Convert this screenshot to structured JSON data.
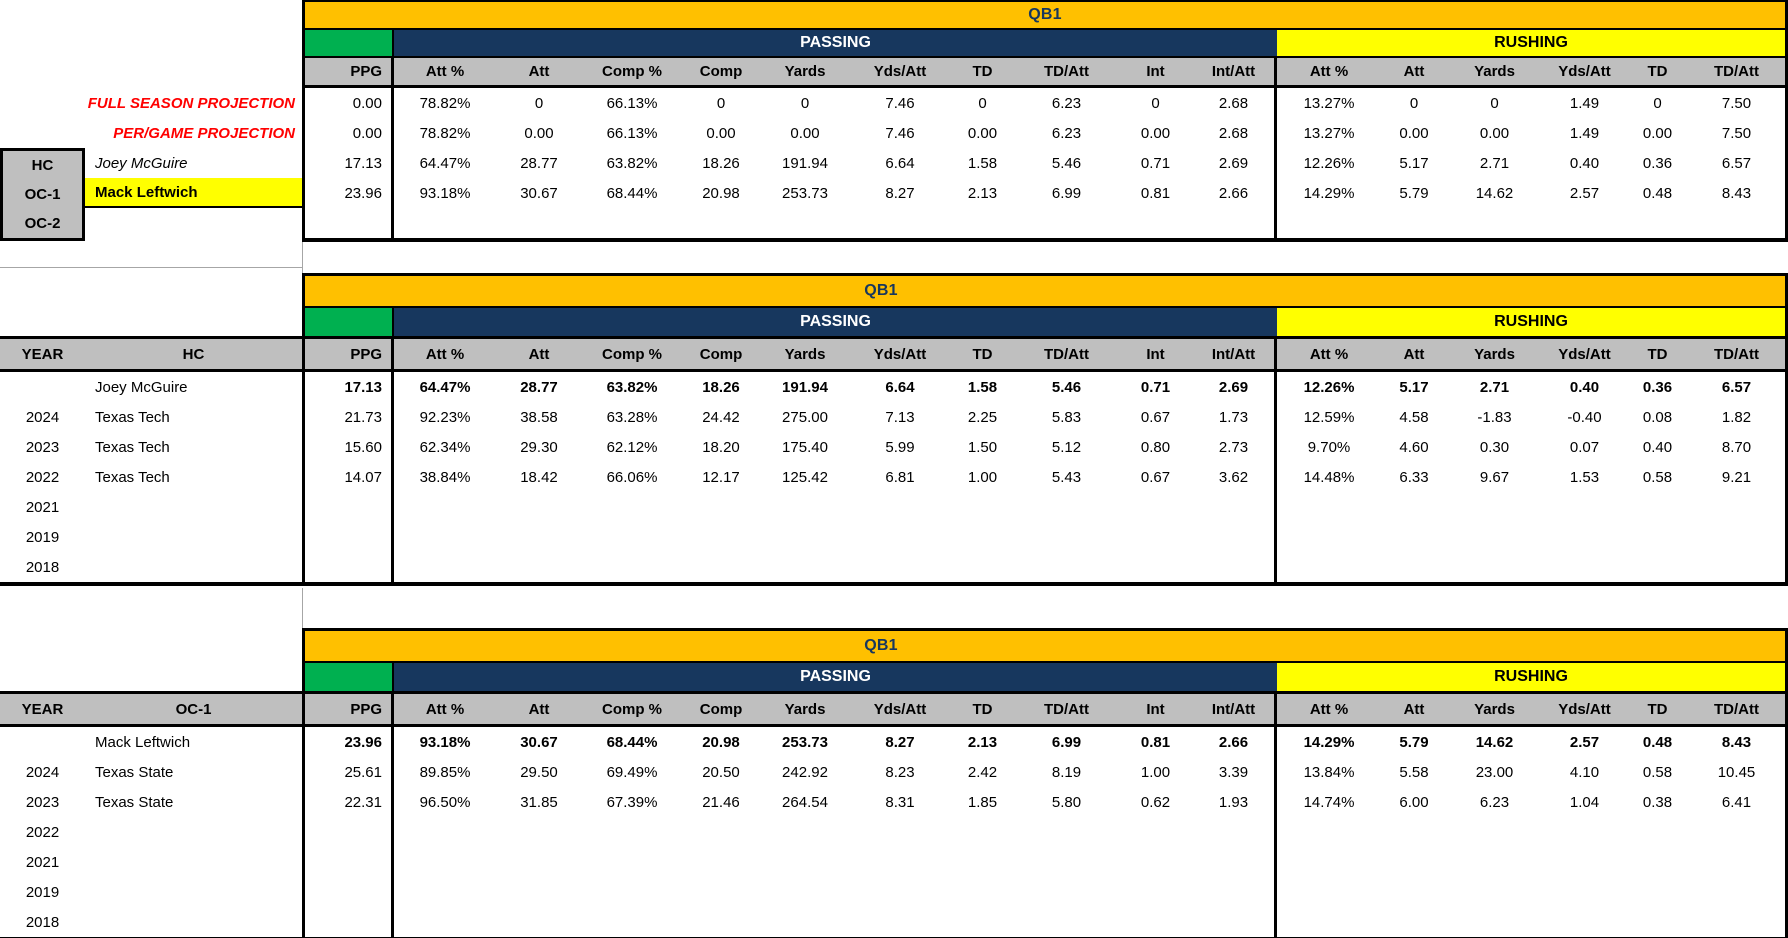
{
  "colors": {
    "orange": "#FFC000",
    "navy": "#17375E",
    "green": "#00B050",
    "yellow": "#FFFF00",
    "header_gray": "#BFBFBF",
    "projection_red": "#FF0000"
  },
  "columns": {
    "ppg": "PPG",
    "passing": [
      "Att %",
      "Att",
      "Comp %",
      "Comp",
      "Yards",
      "Yds/Att",
      "TD",
      "TD/Att",
      "Int",
      "Int/Att"
    ],
    "rushing": [
      "Att %",
      "Att",
      "Yards",
      "Yds/Att",
      "TD",
      "TD/Att"
    ]
  },
  "sections": {
    "projection": {
      "title": "QB1",
      "passing_label": "PASSING",
      "rushing_label": "RUSHING",
      "projection_rows": [
        {
          "label": "FULL SEASON PROJECTION",
          "values": [
            "0.00",
            "78.82%",
            "0",
            "66.13%",
            "0",
            "0",
            "7.46",
            "0",
            "6.23",
            "0",
            "2.68",
            "13.27%",
            "0",
            "0",
            "1.49",
            "0",
            "7.50"
          ]
        },
        {
          "label": "PER/GAME PROJECTION",
          "values": [
            "0.00",
            "78.82%",
            "0.00",
            "66.13%",
            "0.00",
            "0.00",
            "7.46",
            "0.00",
            "6.23",
            "0.00",
            "2.68",
            "13.27%",
            "0.00",
            "0.00",
            "1.49",
            "0.00",
            "7.50"
          ]
        }
      ],
      "person_rows": [
        {
          "role": "HC",
          "name": "Joey McGuire",
          "style": "italic",
          "values": [
            "17.13",
            "64.47%",
            "28.77",
            "63.82%",
            "18.26",
            "191.94",
            "6.64",
            "1.58",
            "5.46",
            "0.71",
            "2.69",
            "12.26%",
            "5.17",
            "2.71",
            "0.40",
            "0.36",
            "6.57"
          ]
        },
        {
          "role": "OC-1",
          "name": "Mack Leftwich",
          "style": "highlight",
          "values": [
            "23.96",
            "93.18%",
            "30.67",
            "68.44%",
            "20.98",
            "253.73",
            "8.27",
            "2.13",
            "6.99",
            "0.81",
            "2.66",
            "14.29%",
            "5.79",
            "14.62",
            "2.57",
            "0.48",
            "8.43"
          ]
        },
        {
          "role": "OC-2",
          "name": "",
          "style": "",
          "values": [
            "",
            "",
            "",
            "",
            "",
            "",
            "",
            "",
            "",
            "",
            "",
            "",
            "",
            "",
            "",
            "",
            ""
          ]
        }
      ]
    },
    "hc_history": {
      "title": "QB1",
      "passing_label": "PASSING",
      "rushing_label": "RUSHING",
      "year_header": "YEAR",
      "name_header": "HC",
      "rows": [
        {
          "year": "",
          "name": "Joey McGuire",
          "bold": true,
          "values": [
            "17.13",
            "64.47%",
            "28.77",
            "63.82%",
            "18.26",
            "191.94",
            "6.64",
            "1.58",
            "5.46",
            "0.71",
            "2.69",
            "12.26%",
            "5.17",
            "2.71",
            "0.40",
            "0.36",
            "6.57"
          ]
        },
        {
          "year": "2024",
          "name": "Texas Tech",
          "bold": false,
          "values": [
            "21.73",
            "92.23%",
            "38.58",
            "63.28%",
            "24.42",
            "275.00",
            "7.13",
            "2.25",
            "5.83",
            "0.67",
            "1.73",
            "12.59%",
            "4.58",
            "-1.83",
            "-0.40",
            "0.08",
            "1.82"
          ]
        },
        {
          "year": "2023",
          "name": "Texas Tech",
          "bold": false,
          "values": [
            "15.60",
            "62.34%",
            "29.30",
            "62.12%",
            "18.20",
            "175.40",
            "5.99",
            "1.50",
            "5.12",
            "0.80",
            "2.73",
            "9.70%",
            "4.60",
            "0.30",
            "0.07",
            "0.40",
            "8.70"
          ]
        },
        {
          "year": "2022",
          "name": "Texas Tech",
          "bold": false,
          "values": [
            "14.07",
            "38.84%",
            "18.42",
            "66.06%",
            "12.17",
            "125.42",
            "6.81",
            "1.00",
            "5.43",
            "0.67",
            "3.62",
            "14.48%",
            "6.33",
            "9.67",
            "1.53",
            "0.58",
            "9.21"
          ]
        },
        {
          "year": "2021",
          "name": "",
          "bold": false,
          "values": [
            "",
            "",
            "",
            "",
            "",
            "",
            "",
            "",
            "",
            "",
            "",
            "",
            "",
            "",
            "",
            "",
            ""
          ]
        },
        {
          "year": "2019",
          "name": "",
          "bold": false,
          "values": [
            "",
            "",
            "",
            "",
            "",
            "",
            "",
            "",
            "",
            "",
            "",
            "",
            "",
            "",
            "",
            "",
            ""
          ]
        },
        {
          "year": "2018",
          "name": "",
          "bold": false,
          "values": [
            "",
            "",
            "",
            "",
            "",
            "",
            "",
            "",
            "",
            "",
            "",
            "",
            "",
            "",
            "",
            "",
            ""
          ]
        }
      ]
    },
    "oc_history": {
      "title": "QB1",
      "passing_label": "PASSING",
      "rushing_label": "RUSHING",
      "year_header": "YEAR",
      "name_header": "OC-1",
      "rows": [
        {
          "year": "",
          "name": "Mack Leftwich",
          "bold": true,
          "values": [
            "23.96",
            "93.18%",
            "30.67",
            "68.44%",
            "20.98",
            "253.73",
            "8.27",
            "2.13",
            "6.99",
            "0.81",
            "2.66",
            "14.29%",
            "5.79",
            "14.62",
            "2.57",
            "0.48",
            "8.43"
          ]
        },
        {
          "year": "2024",
          "name": "Texas State",
          "bold": false,
          "values": [
            "25.61",
            "89.85%",
            "29.50",
            "69.49%",
            "20.50",
            "242.92",
            "8.23",
            "2.42",
            "8.19",
            "1.00",
            "3.39",
            "13.84%",
            "5.58",
            "23.00",
            "4.10",
            "0.58",
            "10.45"
          ]
        },
        {
          "year": "2023",
          "name": "Texas State",
          "bold": false,
          "values": [
            "22.31",
            "96.50%",
            "31.85",
            "67.39%",
            "21.46",
            "264.54",
            "8.31",
            "1.85",
            "5.80",
            "0.62",
            "1.93",
            "14.74%",
            "6.00",
            "6.23",
            "1.04",
            "0.38",
            "6.41"
          ]
        },
        {
          "year": "2022",
          "name": "",
          "bold": false,
          "values": [
            "",
            "",
            "",
            "",
            "",
            "",
            "",
            "",
            "",
            "",
            "",
            "",
            "",
            "",
            "",
            "",
            ""
          ]
        },
        {
          "year": "2021",
          "name": "",
          "bold": false,
          "values": [
            "",
            "",
            "",
            "",
            "",
            "",
            "",
            "",
            "",
            "",
            "",
            "",
            "",
            "",
            "",
            "",
            ""
          ]
        },
        {
          "year": "2019",
          "name": "",
          "bold": false,
          "values": [
            "",
            "",
            "",
            "",
            "",
            "",
            "",
            "",
            "",
            "",
            "",
            "",
            "",
            "",
            "",
            "",
            ""
          ]
        },
        {
          "year": "2018",
          "name": "",
          "bold": false,
          "values": [
            "",
            "",
            "",
            "",
            "",
            "",
            "",
            "",
            "",
            "",
            "",
            "",
            "",
            "",
            "",
            "",
            ""
          ]
        }
      ]
    }
  }
}
